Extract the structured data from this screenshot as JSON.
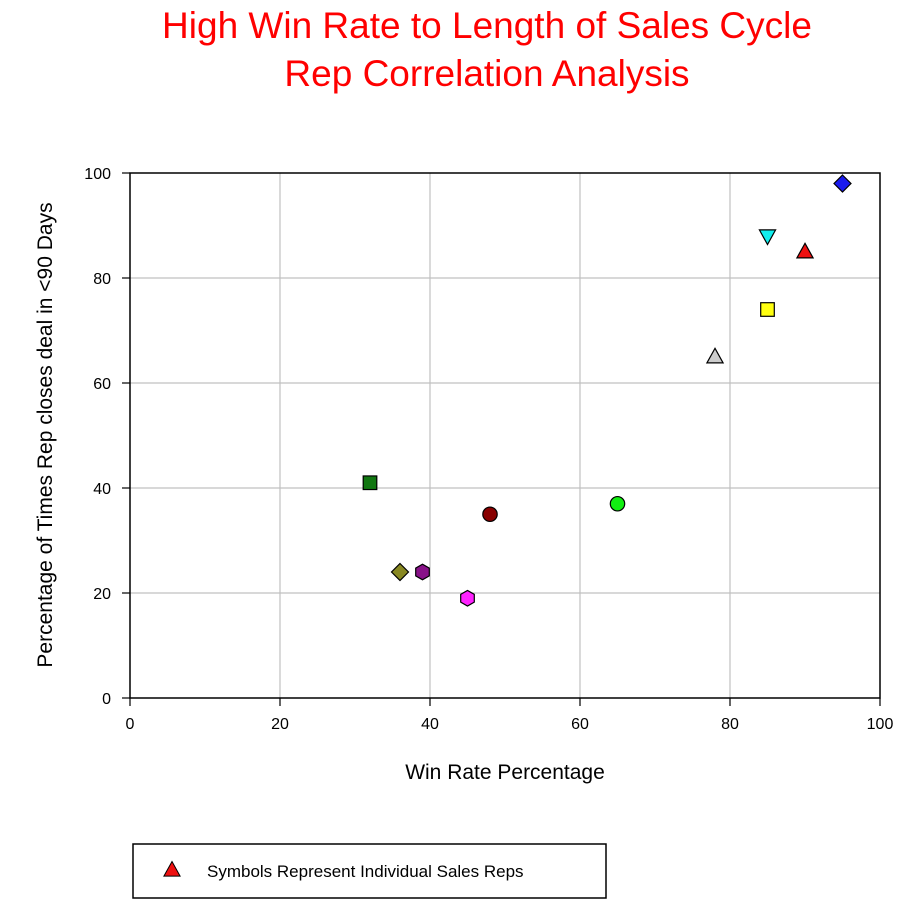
{
  "chart_data": {
    "type": "scatter",
    "title": [
      "High Win Rate to Length of Sales Cycle",
      "Rep Correlation Analysis"
    ],
    "title_color": "#ff0000",
    "xlabel": "Win Rate Percentage",
    "ylabel": "Percentage of Times Rep closes deal in <90 Days",
    "xlim": [
      0,
      100
    ],
    "ylim": [
      0,
      100
    ],
    "xticks": [
      0,
      20,
      40,
      60,
      80,
      100
    ],
    "yticks": [
      0,
      20,
      40,
      60,
      80,
      100
    ],
    "grid": true,
    "legend_position": "bottom-left",
    "legend": {
      "label": "Symbols Represent Individual Sales Reps",
      "marker": "triangle-up",
      "color": "#ee1111"
    },
    "points": [
      {
        "x": 95,
        "y": 98,
        "marker": "diamond",
        "color": "#1a1aee"
      },
      {
        "x": 85,
        "y": 88,
        "marker": "triangle-down",
        "color": "#11eeee"
      },
      {
        "x": 90,
        "y": 85,
        "marker": "triangle-up",
        "color": "#ee1111"
      },
      {
        "x": 85,
        "y": 74,
        "marker": "square",
        "color": "#ffff11"
      },
      {
        "x": 78,
        "y": 65,
        "marker": "triangle-up",
        "color": "#cccccc"
      },
      {
        "x": 32,
        "y": 41,
        "marker": "square",
        "color": "#117711"
      },
      {
        "x": 65,
        "y": 37,
        "marker": "circle",
        "color": "#11ee11"
      },
      {
        "x": 48,
        "y": 35,
        "marker": "circle",
        "color": "#880000"
      },
      {
        "x": 36,
        "y": 24,
        "marker": "diamond",
        "color": "#888822"
      },
      {
        "x": 39,
        "y": 24,
        "marker": "hexagon",
        "color": "#881188"
      },
      {
        "x": 45,
        "y": 19,
        "marker": "hexagon",
        "color": "#ff22ff"
      }
    ]
  }
}
